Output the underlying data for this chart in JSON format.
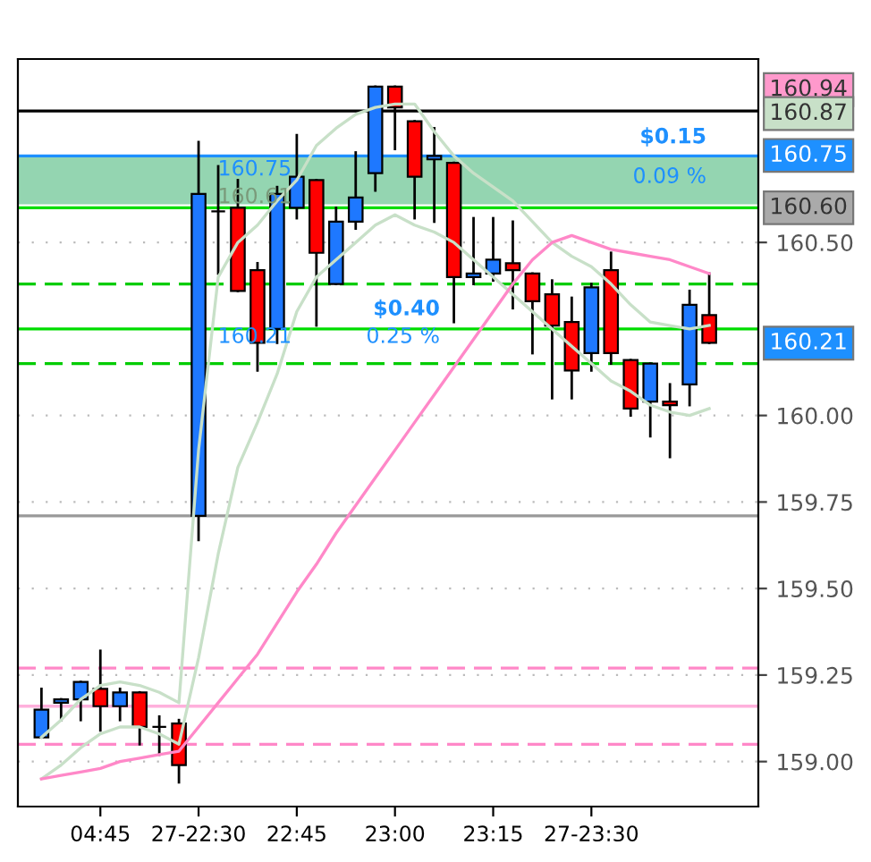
{
  "chart_data": {
    "type": "candlestick",
    "categories": [
      null,
      null,
      null,
      "04:45",
      null,
      null,
      null,
      null,
      "27-22:30",
      null,
      null,
      null,
      null,
      "22:45",
      null,
      null,
      null,
      null,
      "23:00",
      null,
      null,
      null,
      null,
      "23:15",
      null,
      null,
      null,
      null,
      "27-23:30",
      null,
      null,
      null,
      null,
      null,
      null
    ],
    "ohlc": [
      [
        159.07,
        159.21,
        159.07,
        159.15
      ],
      [
        159.17,
        159.18,
        159.12,
        159.18
      ],
      [
        159.18,
        159.23,
        159.12,
        159.23
      ],
      [
        159.21,
        159.32,
        159.09,
        159.16
      ],
      [
        159.16,
        159.21,
        159.12,
        159.2
      ],
      [
        159.2,
        159.2,
        159.05,
        159.1
      ],
      [
        159.1,
        159.13,
        159.02,
        159.1
      ],
      [
        159.11,
        159.12,
        158.94,
        158.99
      ],
      [
        159.71,
        160.79,
        159.64,
        160.64
      ],
      [
        160.59,
        160.72,
        160.41,
        160.59
      ],
      [
        160.6,
        160.68,
        160.36,
        160.36
      ],
      [
        160.42,
        160.44,
        160.13,
        160.21
      ],
      [
        160.25,
        160.66,
        160.21,
        160.64
      ],
      [
        160.6,
        160.81,
        160.57,
        160.69
      ],
      [
        160.68,
        160.68,
        160.26,
        160.47
      ],
      [
        160.38,
        160.6,
        160.38,
        160.56
      ],
      [
        160.56,
        160.76,
        160.54,
        160.63
      ],
      [
        160.7,
        160.95,
        160.65,
        160.95
      ],
      [
        160.95,
        160.95,
        160.77,
        160.89
      ],
      [
        160.85,
        160.85,
        160.57,
        160.69
      ],
      [
        160.74,
        160.83,
        160.56,
        160.75
      ],
      [
        160.73,
        160.73,
        160.27,
        160.4
      ],
      [
        160.4,
        160.57,
        160.38,
        160.41
      ],
      [
        160.41,
        160.57,
        160.39,
        160.45
      ],
      [
        160.44,
        160.56,
        160.31,
        160.42
      ],
      [
        160.41,
        160.41,
        160.18,
        160.33
      ],
      [
        160.35,
        160.39,
        160.05,
        160.26
      ],
      [
        160.27,
        160.34,
        160.05,
        160.13
      ],
      [
        160.18,
        160.38,
        160.13,
        160.37
      ],
      [
        160.42,
        160.47,
        160.15,
        160.18
      ],
      [
        160.16,
        160.16,
        160.0,
        160.02
      ],
      [
        160.04,
        160.15,
        159.94,
        160.15
      ],
      [
        160.04,
        160.09,
        159.88,
        160.03
      ],
      [
        160.09,
        160.36,
        160.03,
        160.32
      ],
      [
        160.29,
        160.41,
        160.21,
        160.21
      ]
    ],
    "series": [
      {
        "type": "line",
        "color": "#c8e0c8",
        "values": [
          159.07,
          159.12,
          159.18,
          159.22,
          159.23,
          159.22,
          159.2,
          159.17,
          159.9,
          160.4,
          160.5,
          160.55,
          160.62,
          160.68,
          160.78,
          160.83,
          160.87,
          160.89,
          160.9,
          160.9,
          160.82,
          160.75,
          160.7,
          160.66,
          160.62,
          160.56,
          160.5,
          160.46,
          160.43,
          160.38,
          160.32,
          160.27,
          160.26,
          160.25,
          160.26
        ]
      },
      {
        "type": "line",
        "color": "#c8e0c8",
        "values": [
          158.95,
          158.99,
          159.04,
          159.08,
          159.1,
          159.1,
          159.08,
          159.05,
          159.3,
          159.6,
          159.85,
          159.98,
          160.12,
          160.3,
          160.4,
          160.45,
          160.5,
          160.55,
          160.58,
          160.55,
          160.53,
          160.5,
          160.45,
          160.4,
          160.35,
          160.3,
          160.25,
          160.2,
          160.15,
          160.1,
          160.07,
          160.03,
          160.01,
          160.0,
          160.02
        ]
      },
      {
        "type": "line",
        "color": "#ff88c8",
        "values": [
          158.95,
          158.96,
          158.97,
          158.98,
          159.0,
          159.01,
          159.02,
          159.03,
          159.1,
          159.17,
          159.24,
          159.31,
          159.4,
          159.49,
          159.57,
          159.66,
          159.74,
          159.82,
          159.9,
          159.98,
          160.06,
          160.14,
          160.22,
          160.3,
          160.38,
          160.45,
          160.5,
          160.52,
          160.5,
          160.48,
          160.47,
          160.46,
          160.45,
          160.43,
          160.41
        ]
      }
    ],
    "ylim": [
      158.87,
      161.03
    ],
    "yticks": [
      {
        "value": 159.0,
        "label": "159.00"
      },
      {
        "value": 159.25,
        "label": "159.25"
      },
      {
        "value": 159.5,
        "label": "159.50"
      },
      {
        "value": 159.75,
        "label": "159.75"
      },
      {
        "value": 160.0,
        "label": "160.00"
      },
      {
        "value": 160.5,
        "label": "160.50"
      }
    ],
    "grid": "y",
    "ref_lines": [
      {
        "axis": "y",
        "value": 160.88,
        "color": "#000000"
      },
      {
        "axis": "y",
        "value": 160.75,
        "color": "#1e90ff"
      },
      {
        "axis": "y",
        "value": 160.6,
        "color": "#00dd00"
      },
      {
        "axis": "y",
        "value": 160.38,
        "color": "#00cc00",
        "line_style": "dashed"
      },
      {
        "axis": "y",
        "value": 160.25,
        "color": "#00dd00"
      },
      {
        "axis": "y",
        "value": 160.15,
        "color": "#00cc00",
        "line_style": "dashed"
      },
      {
        "axis": "y",
        "value": 159.71,
        "color": "#999999"
      },
      {
        "axis": "y",
        "value": 159.27,
        "color": "#ff88c8",
        "line_style": "dashed"
      },
      {
        "axis": "y",
        "value": 159.16,
        "color": "#ffb0dc"
      },
      {
        "axis": "y",
        "value": 159.05,
        "color": "#ff88c8",
        "line_style": "dashed"
      }
    ],
    "bands": [
      {
        "axis": "y",
        "from": 160.61,
        "to": 160.75,
        "color": "#3cb371"
      }
    ],
    "annotations": [
      "$0.15",
      "0.09 %",
      "160.75",
      "160.61",
      "$0.40",
      "0.25 %",
      "160.21",
      "160.94",
      "160.87",
      "160.75",
      "160.60",
      "160.21"
    ]
  }
}
